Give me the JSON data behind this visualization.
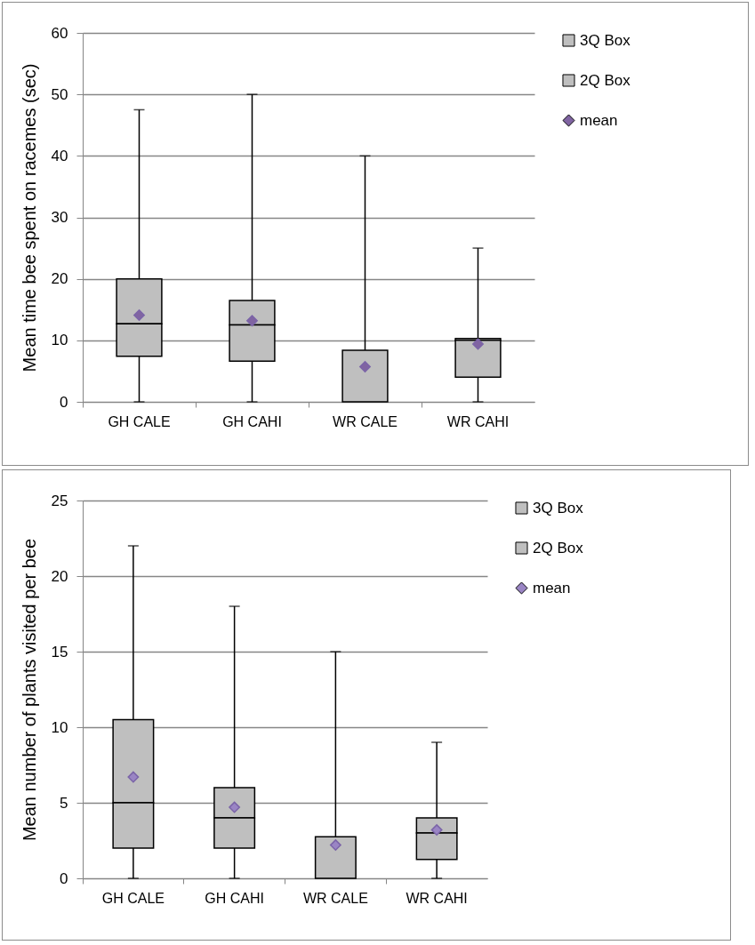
{
  "chart_data": [
    {
      "type": "bar",
      "ylabel": "Mean time bee spent on racemes (sec)",
      "categories": [
        "GH CALE",
        "GH CAHI",
        "WR CALE",
        "WR CAHI"
      ],
      "series": [
        {
          "name": "3Q Box",
          "color": "#bfbfbf",
          "base": [
            12.7,
            12.5,
            0,
            10.0
          ],
          "values": [
            7.3,
            4.0,
            8.4,
            0.3
          ],
          "errors": [
            [
              20.0,
              47.5
            ],
            [
              16.5,
              50
            ],
            [
              8.4,
              40
            ],
            [
              10.3,
              25
            ]
          ]
        },
        {
          "name": "2Q Box",
          "color": "#bfbfbf",
          "base": [
            7.4,
            6.6,
            null,
            4.0
          ],
          "values": [
            5.3,
            5.9,
            null,
            6.0
          ],
          "errors": [
            [
              0,
              7.4
            ],
            [
              0,
              6.6
            ],
            null,
            [
              0,
              4.0
            ]
          ]
        },
        {
          "name": "mean",
          "type": "scatter",
          "color": "#8064a2",
          "x": [
            "GH CALE",
            "GH CAHI",
            "WR CALE",
            "WR CAHI"
          ],
          "values": [
            14.1,
            13.2,
            5.7,
            9.4
          ]
        }
      ],
      "ylim": [
        0,
        60
      ],
      "yticks": [
        0,
        10,
        20,
        30,
        40,
        50,
        60
      ],
      "grid": "y",
      "legend": "right",
      "marker": "diamond"
    },
    {
      "type": "bar",
      "ylabel": "Mean number of plants visited per bee",
      "categories": [
        "GH CALE",
        "GH CAHI",
        "WR CALE",
        "WR CAHI"
      ],
      "series": [
        {
          "name": "3Q Box",
          "color": "#bfbfbf",
          "base": [
            5.0,
            4.0,
            0,
            3.0
          ],
          "values": [
            5.5,
            2.0,
            2.75,
            1.0
          ],
          "errors": [
            [
              10.5,
              22
            ],
            [
              6.0,
              18
            ],
            [
              2.75,
              15
            ],
            [
              4.0,
              9
            ]
          ]
        },
        {
          "name": "2Q Box",
          "color": "#bfbfbf",
          "base": [
            2.0,
            2.0,
            null,
            1.25
          ],
          "values": [
            3.0,
            2.0,
            null,
            1.75
          ],
          "errors": [
            [
              0,
              2.0
            ],
            [
              0,
              2.0
            ],
            null,
            [
              0,
              1.25
            ]
          ]
        },
        {
          "name": "mean",
          "type": "scatter",
          "color": "#9a85c4",
          "x": [
            "GH CALE",
            "GH CAHI",
            "WR CALE",
            "WR CAHI"
          ],
          "values": [
            6.7,
            4.7,
            2.2,
            3.2
          ]
        }
      ],
      "ylim": [
        0,
        25
      ],
      "yticks": [
        0,
        5,
        10,
        15,
        20,
        25
      ],
      "grid": "y",
      "legend": "right",
      "marker": "diamond"
    }
  ]
}
